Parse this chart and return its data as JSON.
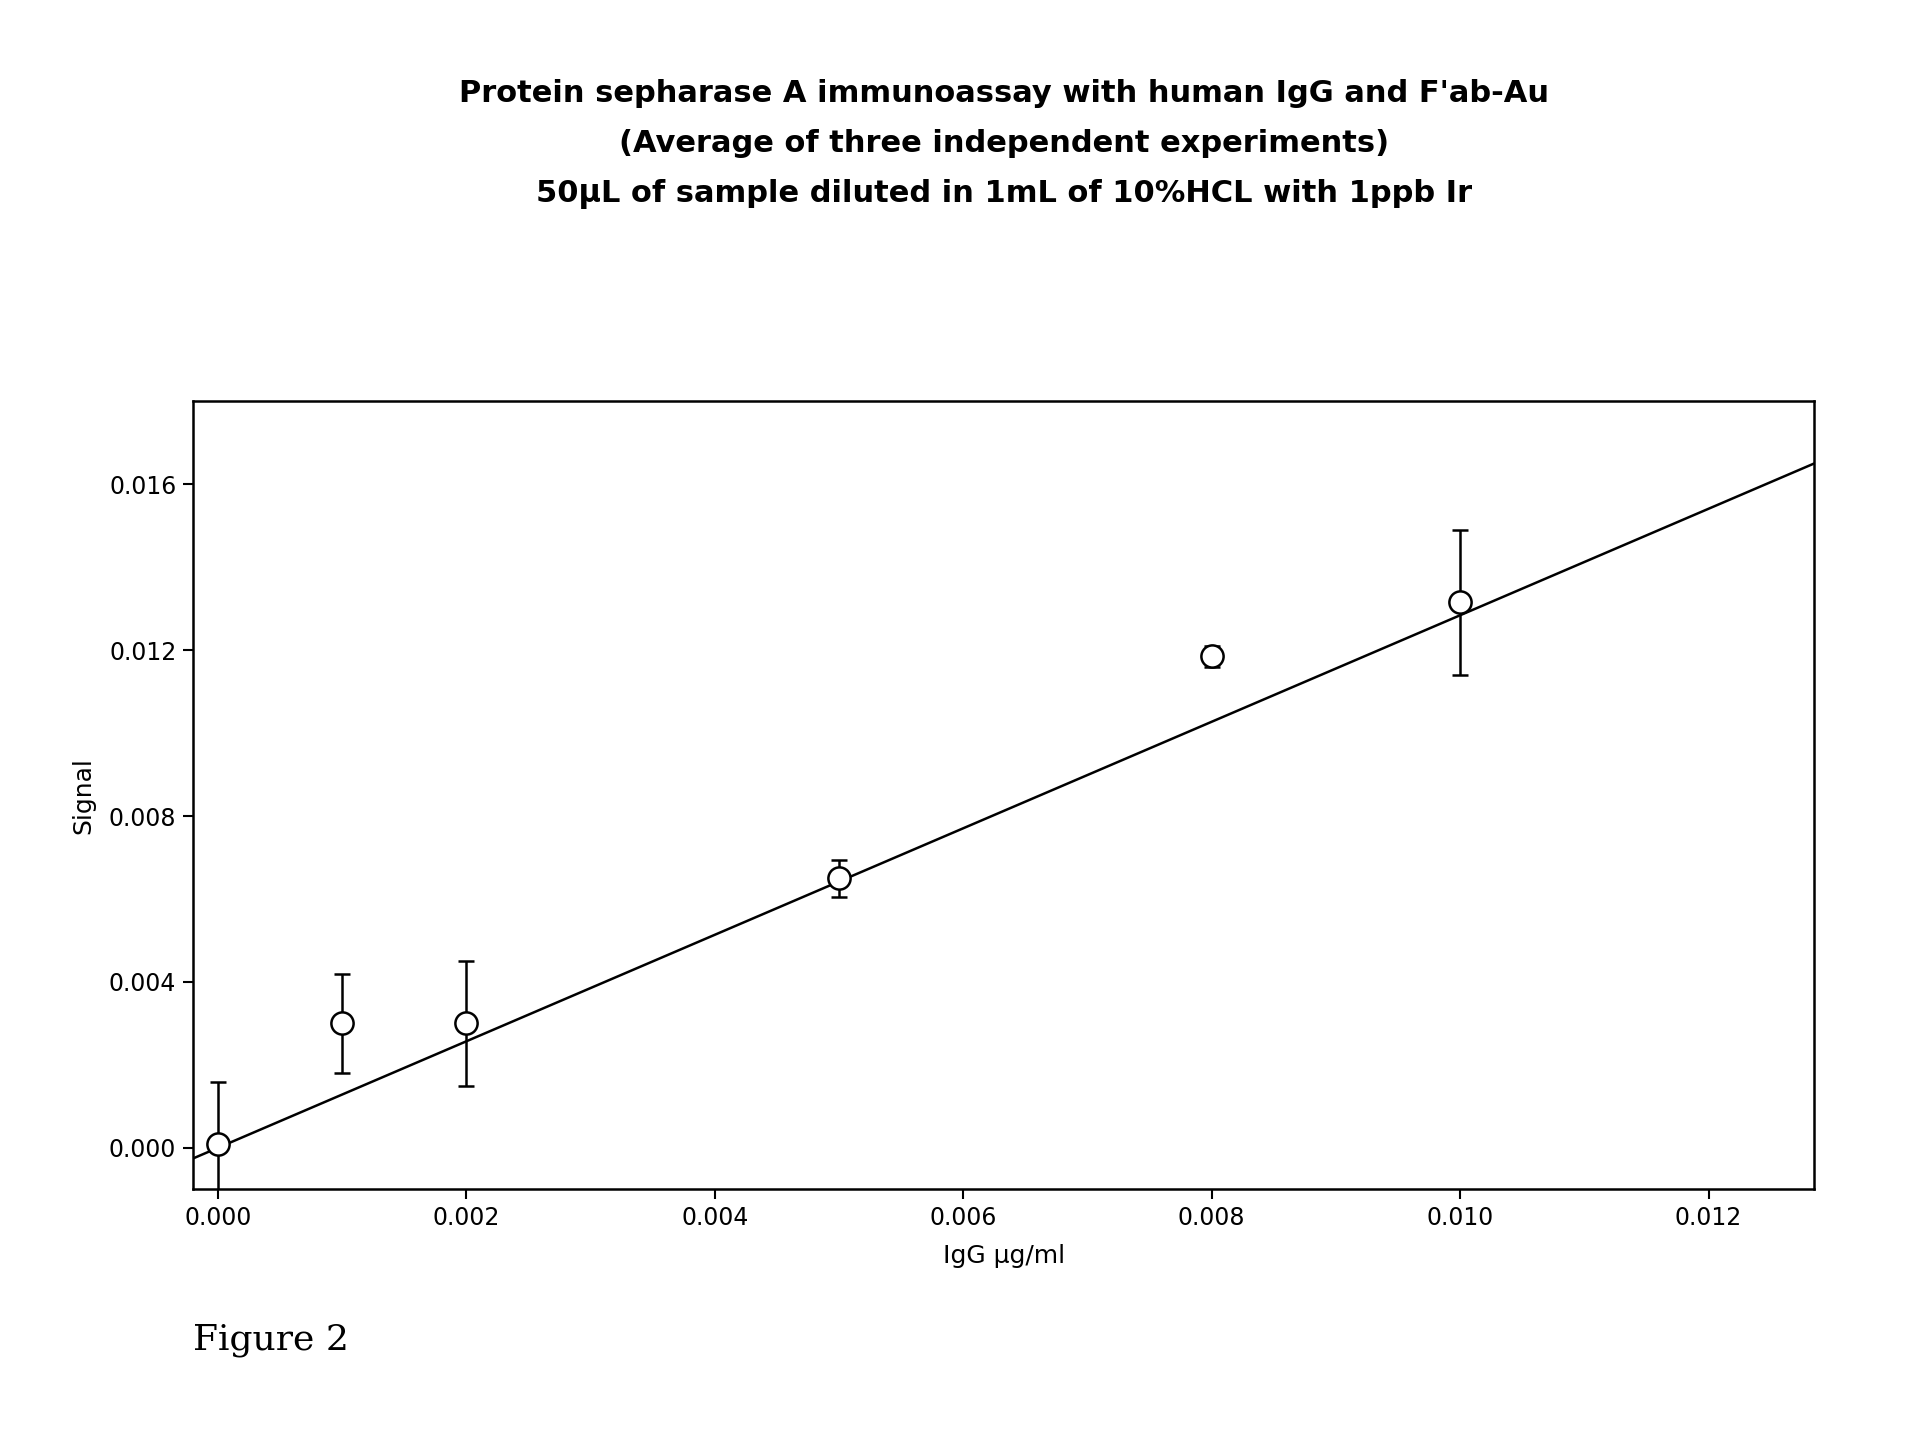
{
  "title_line1": "Protein sepharase A immunoassay with human IgG and F'ab-Au",
  "title_line2": "(Average of three independent experiments)",
  "title_line3": "50μL of sample diluted in 1mL of 10%HCL with 1ppb Ir",
  "xlabel": "IgG μg/ml",
  "ylabel": "Signal",
  "figure_label": "Figure 2",
  "x_data": [
    0.0,
    0.001,
    0.002,
    0.005,
    0.008,
    0.01
  ],
  "y_data": [
    0.0001,
    0.003,
    0.003,
    0.0065,
    0.01185,
    0.01315
  ],
  "y_err": [
    0.0015,
    0.0012,
    0.0015,
    0.00045,
    0.00025,
    0.00175
  ],
  "xlim": [
    -0.0002,
    0.01285
  ],
  "ylim": [
    -0.001,
    0.018
  ],
  "xticks": [
    0.0,
    0.002,
    0.004,
    0.006,
    0.008,
    0.01,
    0.012
  ],
  "yticks": [
    0.0,
    0.004,
    0.008,
    0.012,
    0.016
  ],
  "line_x": [
    -0.0002,
    0.01285
  ],
  "line_y": [
    -0.000255,
    0.0165
  ],
  "background_color": "#ffffff",
  "marker_facecolor": "white",
  "marker_edge_color": "black",
  "line_color": "black",
  "title_fontsize": 22,
  "label_fontsize": 18,
  "tick_fontsize": 17,
  "figure_label_fontsize": 26
}
